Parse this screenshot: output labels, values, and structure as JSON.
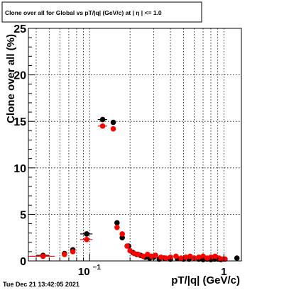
{
  "chart_data": {
    "type": "scatter",
    "title": "Clone  over all for Global vs pT/|q| (GeV/c) at | η | <= 1.0",
    "xlabel": "pT/|q| (GeV/c)",
    "ylabel": "Clone  over all (%)",
    "x_scale": "log",
    "xlim": [
      0.035,
      1.35
    ],
    "ylim": [
      0,
      25
    ],
    "x_tick_labels": [
      {
        "value": 0.1,
        "base": "10",
        "exp": "−1"
      },
      {
        "value": 1,
        "label": "1"
      }
    ],
    "y_ticks": [
      0,
      5,
      10,
      15,
      20,
      25
    ],
    "grid": true,
    "series": [
      {
        "color": "#000000",
        "points": [
          {
            "x": 0.045,
            "y": 0.6,
            "xerr": [
              0.04,
              0.05
            ]
          },
          {
            "x": 0.065,
            "y": 0.8
          },
          {
            "x": 0.075,
            "y": 1.2
          },
          {
            "x": 0.095,
            "y": 2.9,
            "xerr": [
              0.085,
              0.105
            ]
          },
          {
            "x": 0.125,
            "y": 15.2,
            "xerr": [
              0.115,
              0.135
            ]
          },
          {
            "x": 0.15,
            "y": 14.9
          },
          {
            "x": 0.16,
            "y": 4.1
          },
          {
            "x": 0.175,
            "y": 2.5
          },
          {
            "x": 0.195,
            "y": 1.6
          },
          {
            "x": 0.21,
            "y": 0.9
          },
          {
            "x": 0.225,
            "y": 0.7
          },
          {
            "x": 0.24,
            "y": 0.6
          },
          {
            "x": 0.26,
            "y": 0.4
          },
          {
            "x": 0.28,
            "y": 0.3
          },
          {
            "x": 0.3,
            "y": 0.4
          },
          {
            "x": 0.33,
            "y": 0.2
          },
          {
            "x": 0.36,
            "y": 0.3
          },
          {
            "x": 0.4,
            "y": 0.2
          },
          {
            "x": 0.45,
            "y": 0.25
          },
          {
            "x": 0.5,
            "y": 0.2
          },
          {
            "x": 0.55,
            "y": 0.2
          },
          {
            "x": 0.6,
            "y": 0.3
          },
          {
            "x": 0.65,
            "y": 0.2
          },
          {
            "x": 0.7,
            "y": 0.15
          },
          {
            "x": 0.75,
            "y": 0.2
          },
          {
            "x": 0.8,
            "y": 0.15
          },
          {
            "x": 0.85,
            "y": 0.2
          },
          {
            "x": 0.9,
            "y": 0.2
          },
          {
            "x": 0.95,
            "y": 0.15
          },
          {
            "x": 1.0,
            "y": 0.2
          },
          {
            "x": 1.25,
            "y": 0.3
          }
        ]
      },
      {
        "color": "#ff0000",
        "points": [
          {
            "x": 0.045,
            "y": 0.5,
            "xerr": [
              0.035,
              0.055
            ]
          },
          {
            "x": 0.065,
            "y": 0.7
          },
          {
            "x": 0.075,
            "y": 1.0
          },
          {
            "x": 0.095,
            "y": 2.3,
            "xerr": [
              0.085,
              0.105
            ]
          },
          {
            "x": 0.125,
            "y": 14.5,
            "xerr": [
              0.115,
              0.135
            ]
          },
          {
            "x": 0.15,
            "y": 14.2
          },
          {
            "x": 0.16,
            "y": 3.6
          },
          {
            "x": 0.175,
            "y": 2.9
          },
          {
            "x": 0.19,
            "y": 1.6
          },
          {
            "x": 0.2,
            "y": 1.1
          },
          {
            "x": 0.215,
            "y": 0.8
          },
          {
            "x": 0.23,
            "y": 0.7
          },
          {
            "x": 0.25,
            "y": 0.5
          },
          {
            "x": 0.27,
            "y": 0.7
          },
          {
            "x": 0.29,
            "y": 0.5
          },
          {
            "x": 0.31,
            "y": 0.6
          },
          {
            "x": 0.34,
            "y": 0.4
          },
          {
            "x": 0.37,
            "y": 0.3
          },
          {
            "x": 0.4,
            "y": 0.4
          },
          {
            "x": 0.44,
            "y": 0.5
          },
          {
            "x": 0.48,
            "y": 0.3
          },
          {
            "x": 0.52,
            "y": 0.4
          },
          {
            "x": 0.56,
            "y": 0.5
          },
          {
            "x": 0.6,
            "y": 0.3
          },
          {
            "x": 0.65,
            "y": 0.4
          },
          {
            "x": 0.7,
            "y": 0.5
          },
          {
            "x": 0.75,
            "y": 0.3
          },
          {
            "x": 0.8,
            "y": 0.4
          },
          {
            "x": 0.86,
            "y": 0.5
          },
          {
            "x": 0.92,
            "y": 0.3
          },
          {
            "x": 0.97,
            "y": 0.2
          },
          {
            "x": 1.02,
            "y": 0.2
          }
        ]
      }
    ]
  },
  "footer": {
    "timestamp": "Tue Dec 21 13:42:05 2021"
  }
}
